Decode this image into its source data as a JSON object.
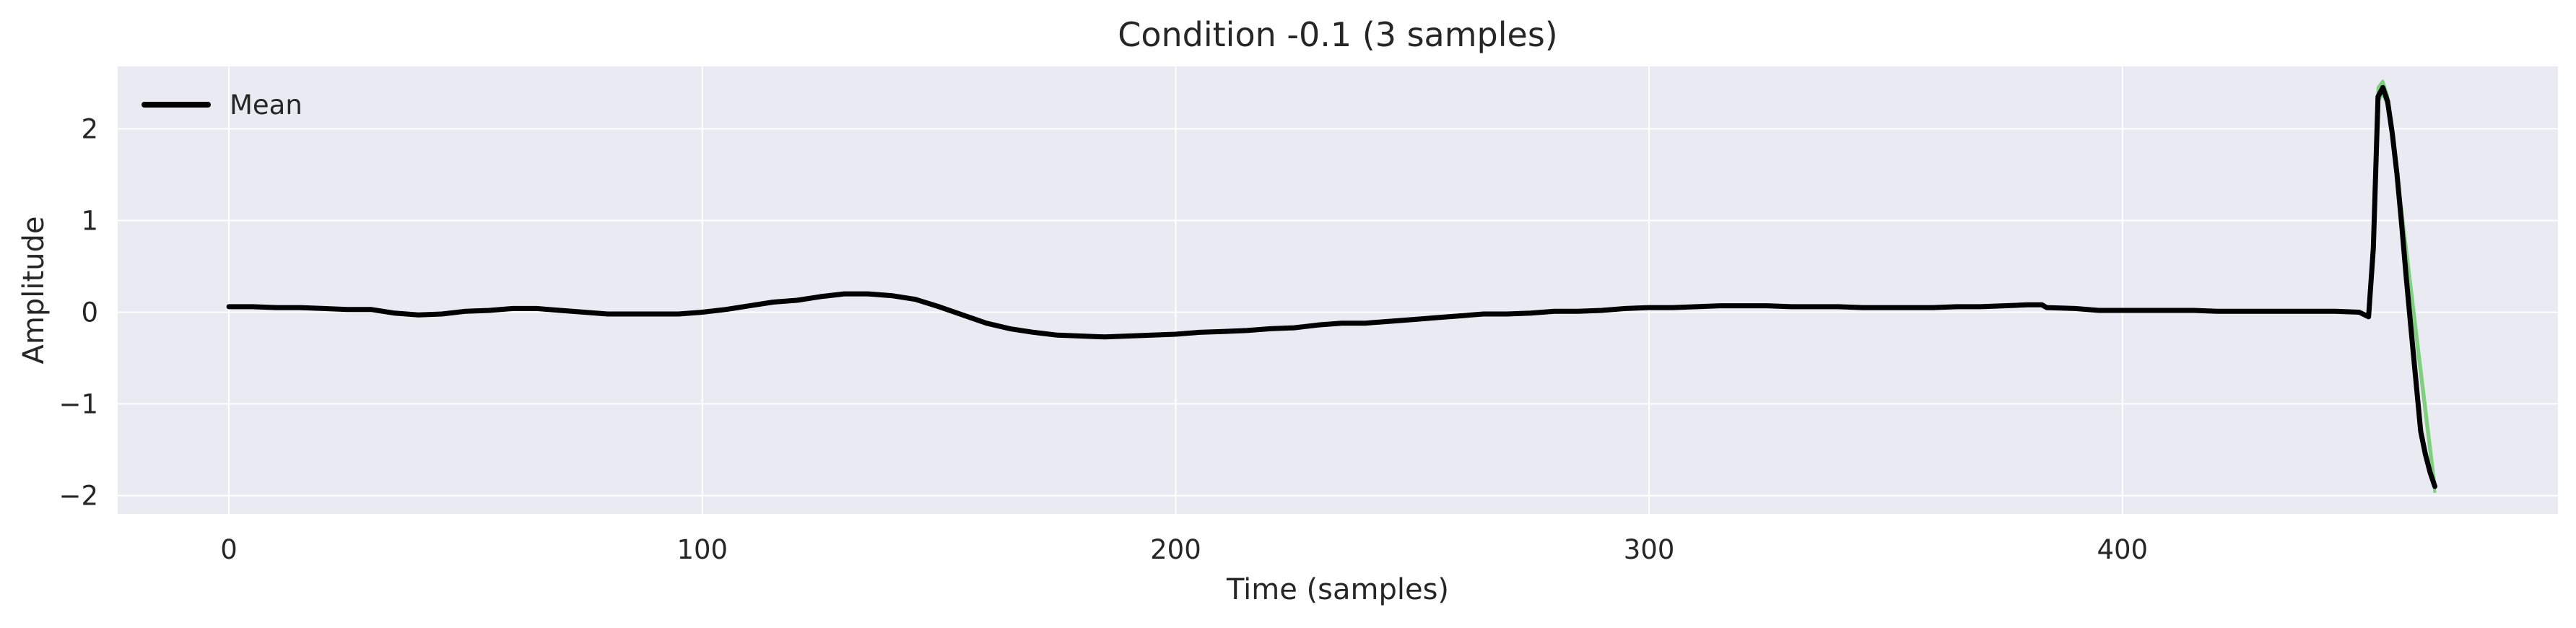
{
  "chart_data": {
    "type": "line",
    "title": "Condition -0.1 (3 samples)",
    "xlabel": "Time (samples)",
    "ylabel": "Amplitude",
    "xlim": [
      -23.5,
      492
    ],
    "ylim": [
      -2.2,
      2.68
    ],
    "xticks": [
      0,
      100,
      200,
      300,
      400
    ],
    "yticks": [
      -2,
      -1,
      0,
      1,
      2
    ],
    "xtick_labels": [
      "0",
      "100",
      "200",
      "300",
      "400"
    ],
    "ytick_labels": [
      "−2",
      "−1",
      "0",
      "1",
      "2"
    ],
    "grid": true,
    "legend_position": "upper left",
    "colors": {
      "background": "#eaeaf2",
      "grid": "#ffffff",
      "mean": "#000000",
      "samples": "#7fcf7f"
    },
    "series": [
      {
        "name": "Mean",
        "color": "#000000",
        "x": [
          0,
          5,
          10,
          15,
          20,
          25,
          30,
          35,
          40,
          45,
          50,
          55,
          60,
          65,
          70,
          75,
          80,
          85,
          90,
          95,
          100,
          105,
          110,
          115,
          120,
          125,
          130,
          135,
          140,
          145,
          150,
          155,
          160,
          165,
          170,
          175,
          180,
          185,
          190,
          195,
          200,
          205,
          210,
          215,
          220,
          225,
          230,
          235,
          240,
          245,
          250,
          255,
          260,
          265,
          270,
          275,
          280,
          285,
          290,
          295,
          300,
          305,
          310,
          315,
          320,
          325,
          330,
          335,
          340,
          345,
          350,
          355,
          360,
          365,
          370,
          375,
          380,
          383,
          384,
          390,
          395,
          400,
          405,
          410,
          415,
          420,
          425,
          430,
          435,
          440,
          445,
          450,
          452,
          453,
          454,
          455,
          456,
          457,
          458,
          459,
          460,
          461,
          462,
          463,
          464,
          465,
          466
        ],
        "y": [
          0.06,
          0.06,
          0.05,
          0.05,
          0.04,
          0.03,
          0.03,
          -0.01,
          -0.03,
          -0.02,
          0.01,
          0.02,
          0.04,
          0.04,
          0.02,
          0.0,
          -0.02,
          -0.02,
          -0.02,
          -0.02,
          0.0,
          0.03,
          0.07,
          0.11,
          0.13,
          0.17,
          0.2,
          0.2,
          0.18,
          0.14,
          0.06,
          -0.03,
          -0.12,
          -0.18,
          -0.22,
          -0.25,
          -0.26,
          -0.27,
          -0.26,
          -0.25,
          -0.24,
          -0.22,
          -0.21,
          -0.2,
          -0.18,
          -0.17,
          -0.14,
          -0.12,
          -0.12,
          -0.1,
          -0.08,
          -0.06,
          -0.04,
          -0.02,
          -0.02,
          -0.01,
          0.01,
          0.01,
          0.02,
          0.04,
          0.05,
          0.05,
          0.06,
          0.07,
          0.07,
          0.07,
          0.06,
          0.06,
          0.06,
          0.05,
          0.05,
          0.05,
          0.05,
          0.06,
          0.06,
          0.07,
          0.08,
          0.08,
          0.05,
          0.04,
          0.02,
          0.02,
          0.02,
          0.02,
          0.02,
          0.01,
          0.01,
          0.01,
          0.01,
          0.01,
          0.01,
          0.0,
          -0.05,
          0.7,
          2.35,
          2.45,
          2.3,
          1.95,
          1.5,
          0.95,
          0.35,
          -0.2,
          -0.75,
          -1.3,
          -1.55,
          -1.75,
          -1.9
        ]
      }
    ],
    "samples_band": {
      "x": [
        453,
        454,
        455,
        456,
        457,
        458,
        466
      ],
      "y_high": [
        0.75,
        2.45,
        2.52,
        2.36,
        2.0,
        1.55,
        -1.88
      ],
      "y_low": [
        0.65,
        2.3,
        2.38,
        2.25,
        1.9,
        1.45,
        -1.97
      ]
    }
  }
}
